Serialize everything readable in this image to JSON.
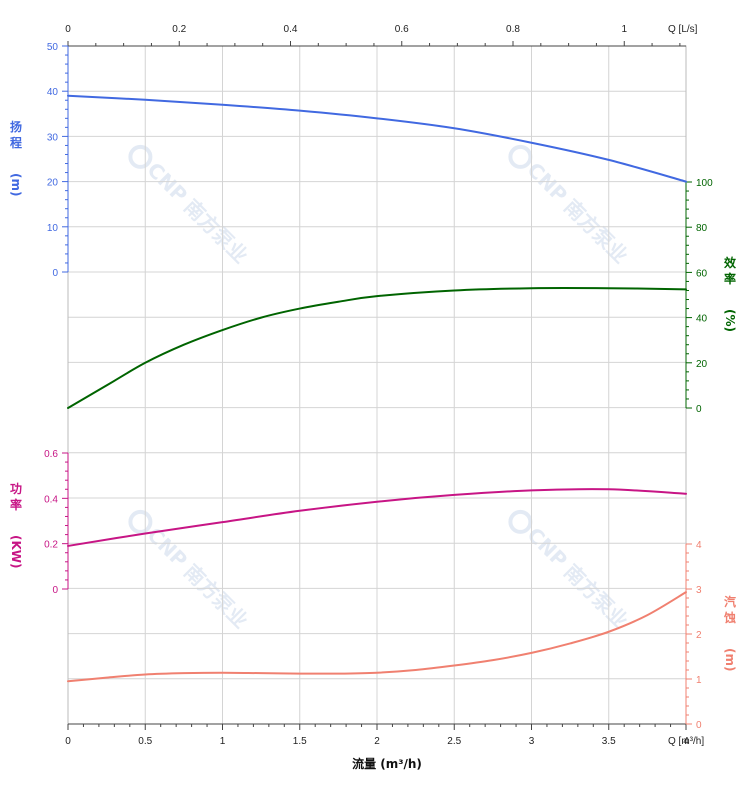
{
  "chart_data": {
    "type": "line",
    "title": "",
    "xlabel": "流量 (m³/h)",
    "x_axis": {
      "unit_label": "Q [m³/h]",
      "range": [
        0,
        4
      ],
      "ticks": [
        "0",
        "0.5",
        "1",
        "1.5",
        "2",
        "2.5",
        "3",
        "3.5",
        "4"
      ]
    },
    "x2_axis": {
      "unit_label": "Q [L/s]",
      "range": [
        0,
        1.111
      ],
      "ticks": [
        "0",
        "0.2",
        "0.4",
        "0.6",
        "0.8",
        "1"
      ]
    },
    "panels": [
      {
        "id": "head",
        "ylabel": "扬程 (m)",
        "color": "#4169e1",
        "ticks": [
          "0",
          "10",
          "20",
          "30",
          "40",
          "50"
        ],
        "ylim": [
          0,
          50
        ],
        "axis_side": "left",
        "series": [
          {
            "x": [
              0,
              0.5,
              1,
              1.5,
              2,
              2.5,
              3,
              3.5,
              4
            ],
            "values": [
              39,
              38.1,
              37,
              35.7,
              34,
              31.8,
              28.6,
              24.8,
              20
            ]
          }
        ]
      },
      {
        "id": "efficiency",
        "ylabel": "效率 (%)",
        "color": "#006400",
        "ticks": [
          "0",
          "20",
          "40",
          "60",
          "80",
          "100"
        ],
        "ylim": [
          0,
          100
        ],
        "axis_side": "right",
        "series": [
          {
            "x": [
              0,
              0.25,
              0.5,
              0.75,
              1,
              1.25,
              1.5,
              1.75,
              2,
              2.5,
              3,
              3.5,
              4
            ],
            "values": [
              0,
              10,
              20,
              28,
              34.5,
              40,
              44,
              47,
              49.5,
              52,
              53,
              53,
              52.5
            ]
          }
        ]
      },
      {
        "id": "power",
        "ylabel": "功率 (KW)",
        "color": "#c71585",
        "ticks": [
          "0",
          "0.2",
          "0.4",
          "0.6"
        ],
        "ylim": [
          0,
          0.6
        ],
        "axis_side": "left",
        "series": [
          {
            "x": [
              0,
              0.5,
              1,
              1.5,
              2,
              2.5,
              3,
              3.5,
              4
            ],
            "values": [
              0.19,
              0.245,
              0.295,
              0.345,
              0.385,
              0.415,
              0.435,
              0.44,
              0.42
            ]
          }
        ]
      },
      {
        "id": "npsh",
        "ylabel": "汽蚀 (m)",
        "color": "#f08070",
        "ticks": [
          "0",
          "1",
          "2",
          "3",
          "4"
        ],
        "ylim": [
          0,
          4
        ],
        "axis_side": "right",
        "series": [
          {
            "x": [
              0,
              0.25,
              0.5,
              0.75,
              1,
              1.25,
              1.5,
              1.75,
              2,
              2.25,
              2.5,
              2.75,
              3,
              3.25,
              3.5,
              3.75,
              4
            ],
            "values": [
              0.95,
              1.03,
              1.1,
              1.13,
              1.14,
              1.13,
              1.12,
              1.12,
              1.14,
              1.2,
              1.3,
              1.42,
              1.58,
              1.79,
              2.05,
              2.42,
              2.93
            ]
          }
        ]
      }
    ],
    "grid": true,
    "watermark": [
      "CNP",
      "南方泵业"
    ]
  }
}
